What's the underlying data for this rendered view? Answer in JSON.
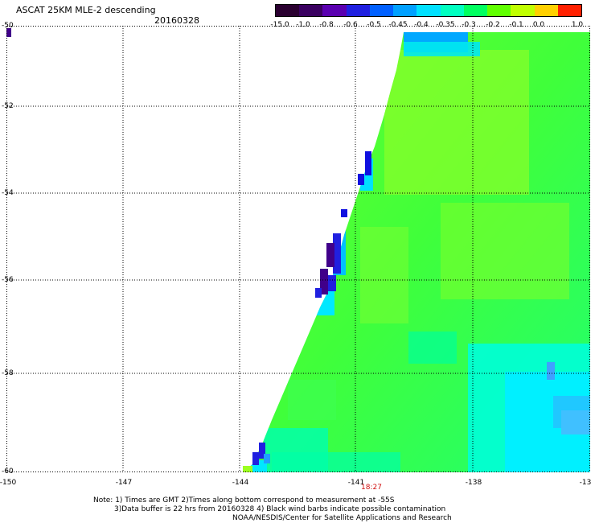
{
  "header": {
    "title": "ASCAT 25KM MLE-2 descending",
    "date": "20160328"
  },
  "colorbar": {
    "labels": [
      "-15.0",
      "-1.0",
      "-0.8",
      "-0.6",
      "-0.5",
      "-0.45",
      "-0.4",
      "-0.35",
      "-0.3",
      "-0.2",
      "-0.1",
      "0.0",
      "1.0"
    ],
    "colors": [
      "#2a0030",
      "#3a0060",
      "#5a00b0",
      "#2020e0",
      "#0060ff",
      "#00a0ff",
      "#00e0ff",
      "#00ffc0",
      "#00ff60",
      "#60ff00",
      "#c0ff00",
      "#ffd000",
      "#ff2000"
    ]
  },
  "axes": {
    "x_ticks": [
      "-150",
      "-147",
      "-144",
      "-141",
      "-138",
      "-13"
    ],
    "y_ticks": [
      "-50",
      "-52",
      "-54",
      "-56",
      "-58",
      "-60"
    ],
    "time_label": "18:27"
  },
  "notes": {
    "line1": "Note: 1) Times are GMT 2)Times along bottom correspond to measurement at -55S",
    "line2": "3)Data buffer is 22 hrs from 20160328 4) Black wind barbs indicate possible contamination",
    "line3": "NOAA/NESDIS/Center for Satellite Applications and Research"
  },
  "colors": {
    "background": "#ffffff",
    "swath_green": "#60ff20",
    "swath_cyan": "#00ffd0",
    "swath_blue": "#1010e0",
    "swath_purple": "#40008a"
  }
}
